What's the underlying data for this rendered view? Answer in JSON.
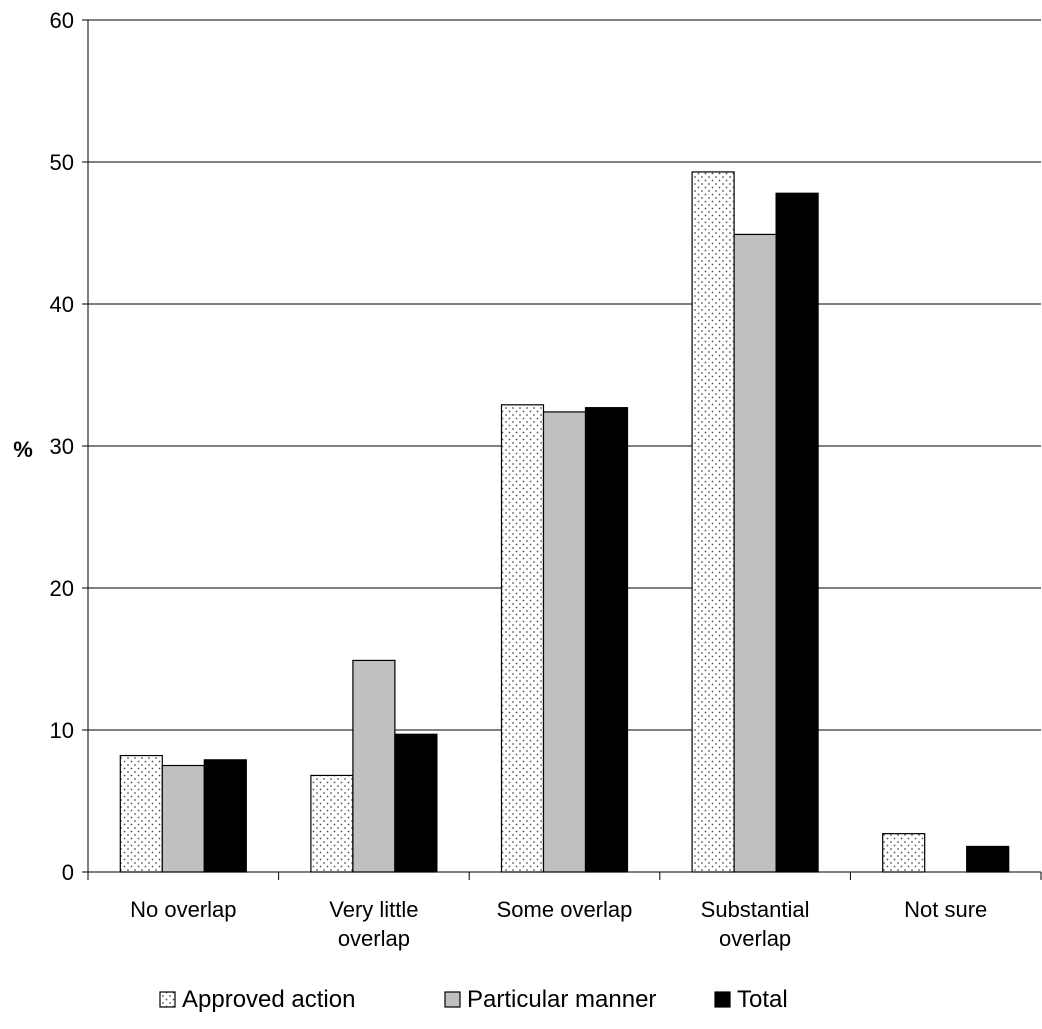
{
  "chart_data": {
    "type": "bar",
    "title": "",
    "xlabel": "",
    "ylabel": "%",
    "ylim": [
      0,
      60
    ],
    "yticks": [
      0,
      10,
      20,
      30,
      40,
      50,
      60
    ],
    "grid": true,
    "legend_position": "bottom",
    "categories": [
      [
        "No overlap"
      ],
      [
        "Very little",
        "overlap"
      ],
      [
        "Some overlap"
      ],
      [
        "Substantial",
        "overlap"
      ],
      [
        "Not sure"
      ]
    ],
    "series": [
      {
        "name": "Approved action",
        "pattern": "dotted",
        "color": "#ffffff",
        "values": [
          8.2,
          6.8,
          32.9,
          49.3,
          2.7
        ]
      },
      {
        "name": "Particular manner",
        "pattern": "solid",
        "color": "#c0c0c0",
        "values": [
          7.5,
          14.9,
          32.4,
          44.9,
          0
        ]
      },
      {
        "name": "Total",
        "pattern": "solid",
        "color": "#000000",
        "values": [
          7.9,
          9.7,
          32.7,
          47.8,
          1.8
        ]
      }
    ]
  }
}
